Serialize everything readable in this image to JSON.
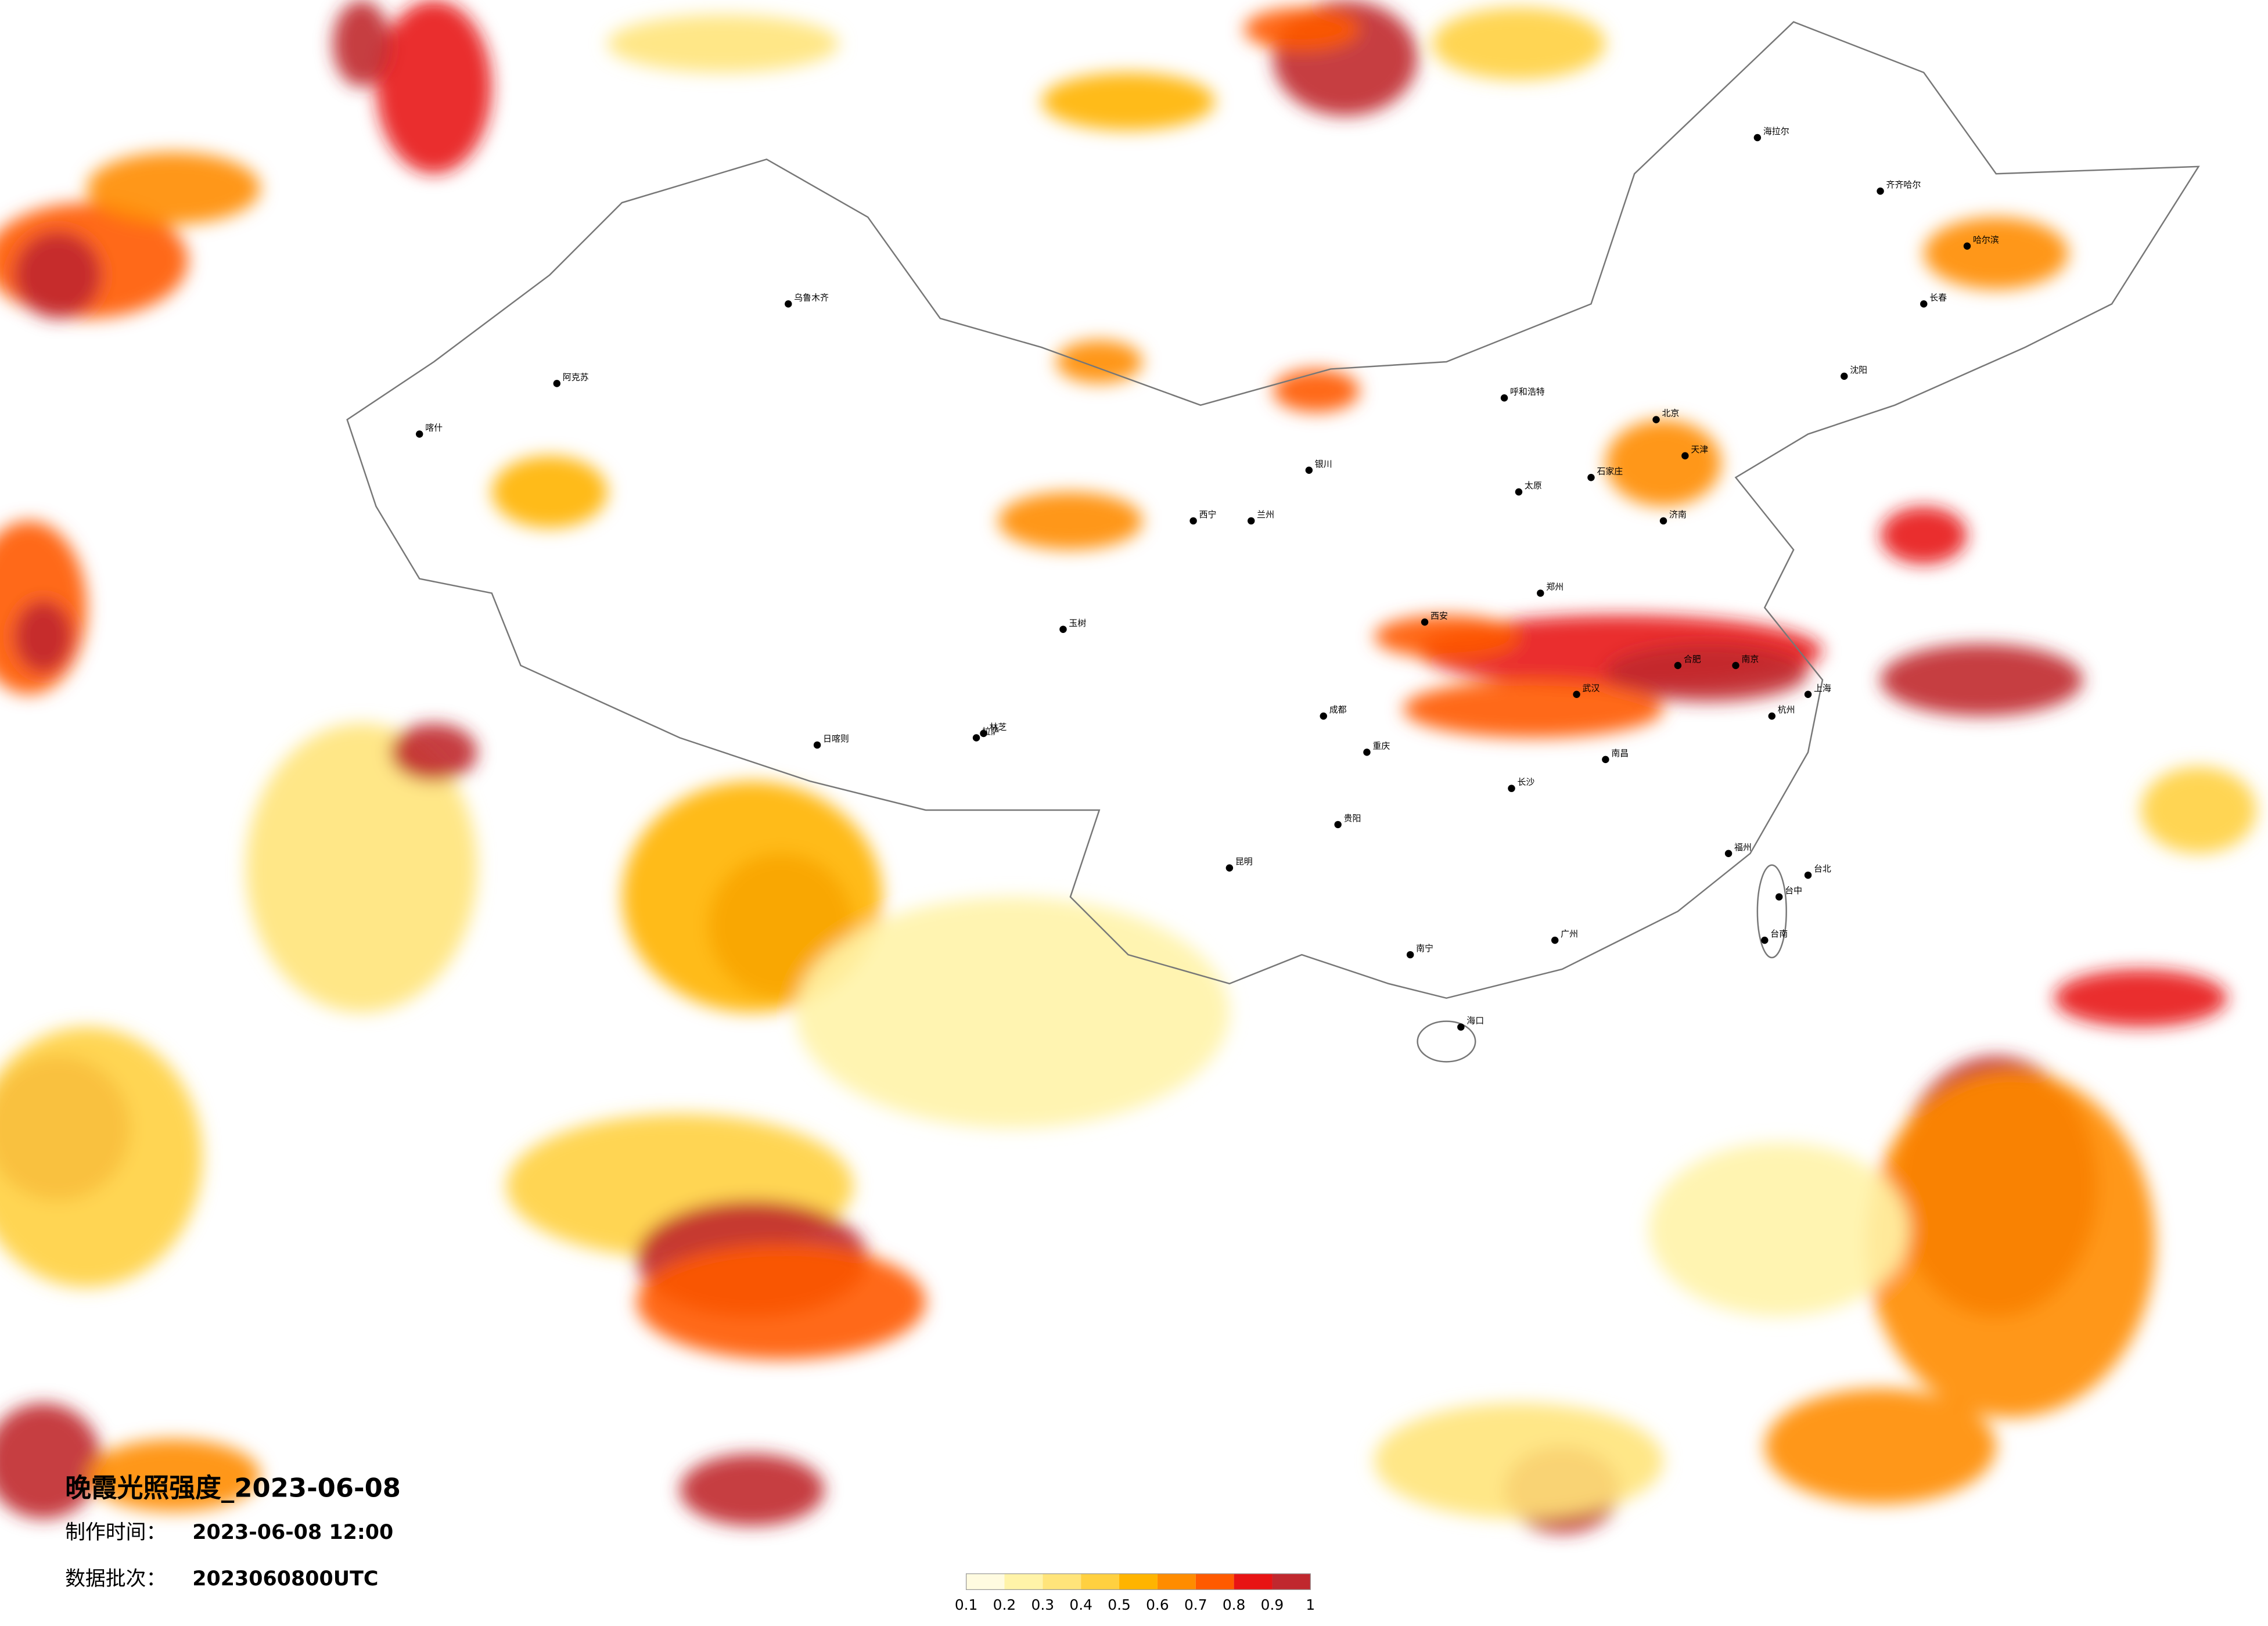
{
  "title": "晚霞光照强度_2023-06-08",
  "info": [
    {
      "label": "制作时间：",
      "value": "2023-06-08 12:00"
    },
    {
      "label": "数据批次：",
      "value": "2023060800UTC"
    }
  ],
  "legend": {
    "ticks": [
      0.1,
      0.2,
      0.3,
      0.4,
      0.5,
      0.6,
      0.7,
      0.8,
      0.9,
      1
    ],
    "colors": [
      "#fffbe0",
      "#fff3a8",
      "#ffe47a",
      "#ffd040",
      "#ffb400",
      "#ff8c00",
      "#ff5a00",
      "#e81414",
      "#c0282e"
    ]
  },
  "cities": [
    "北京",
    "天津",
    "上海",
    "武汉",
    "成都",
    "重庆",
    "广州",
    "长沙",
    "南京",
    "杭州",
    "昆明",
    "贵阳",
    "西安",
    "兰州",
    "西宁",
    "拉萨",
    "乌鲁木齐",
    "哈尔滨",
    "长春",
    "沈阳",
    "呼和浩特",
    "银川",
    "郑州",
    "济南",
    "石家庄",
    "太原",
    "合肥",
    "南昌",
    "福州",
    "南宁",
    "海口",
    "台北",
    "台中",
    "台南",
    "齐齐哈尔",
    "海拉尔",
    "喀什",
    "阿克苏",
    "日喀则",
    "林芝",
    "玉树"
  ]
}
